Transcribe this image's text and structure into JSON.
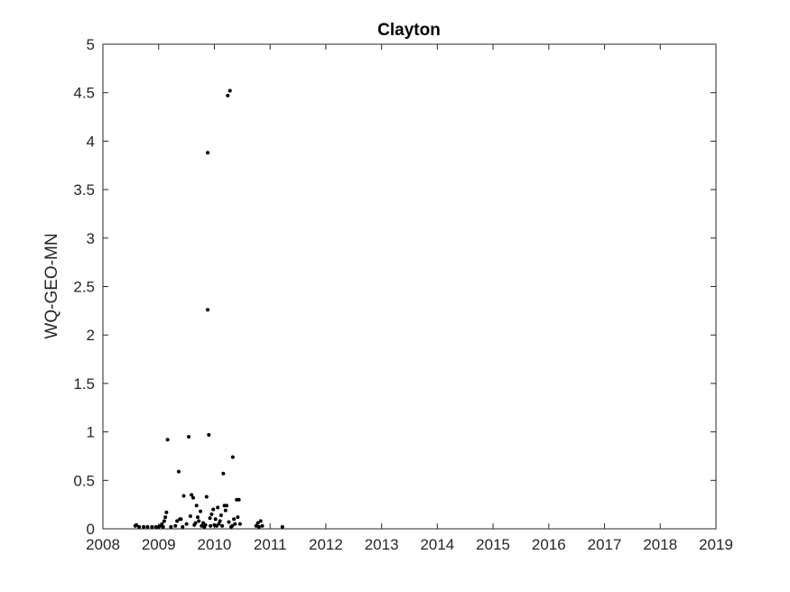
{
  "chart_data": {
    "type": "scatter",
    "title": "Clayton",
    "xlabel": "",
    "ylabel": "WQ-GEO-MN",
    "xlim": [
      2008,
      2019
    ],
    "ylim": [
      0,
      5
    ],
    "xticks": [
      "2008",
      "2009",
      "2010",
      "2011",
      "2012",
      "2013",
      "2014",
      "2015",
      "2016",
      "2017",
      "2018",
      "2019"
    ],
    "yticks": [
      "0",
      "0.5",
      "1",
      "1.5",
      "2",
      "2.5",
      "3",
      "3.5",
      "4",
      "4.5",
      "5"
    ],
    "grid": false,
    "marker_color": "#000000",
    "points": [
      [
        2008.58,
        0.03
      ],
      [
        2008.6,
        0.04
      ],
      [
        2008.65,
        0.02
      ],
      [
        2008.73,
        0.02
      ],
      [
        2008.8,
        0.02
      ],
      [
        2008.88,
        0.02
      ],
      [
        2008.95,
        0.02
      ],
      [
        2009.0,
        0.02
      ],
      [
        2009.03,
        0.03
      ],
      [
        2009.06,
        0.05
      ],
      [
        2009.08,
        0.02
      ],
      [
        2009.1,
        0.08
      ],
      [
        2009.12,
        0.12
      ],
      [
        2009.14,
        0.17
      ],
      [
        2009.16,
        0.92
      ],
      [
        2009.22,
        0.02
      ],
      [
        2009.3,
        0.03
      ],
      [
        2009.33,
        0.08
      ],
      [
        2009.36,
        0.59
      ],
      [
        2009.38,
        0.1
      ],
      [
        2009.4,
        0.1
      ],
      [
        2009.43,
        0.02
      ],
      [
        2009.45,
        0.34
      ],
      [
        2009.5,
        0.05
      ],
      [
        2009.54,
        0.95
      ],
      [
        2009.57,
        0.13
      ],
      [
        2009.59,
        0.35
      ],
      [
        2009.62,
        0.32
      ],
      [
        2009.64,
        0.04
      ],
      [
        2009.66,
        0.06
      ],
      [
        2009.68,
        0.24
      ],
      [
        2009.7,
        0.12
      ],
      [
        2009.72,
        0.08
      ],
      [
        2009.75,
        0.18
      ],
      [
        2009.77,
        0.03
      ],
      [
        2009.8,
        0.06
      ],
      [
        2009.82,
        0.02
      ],
      [
        2009.84,
        0.04
      ],
      [
        2009.86,
        0.33
      ],
      [
        2009.88,
        3.88
      ],
      [
        2009.88,
        2.26
      ],
      [
        2009.9,
        0.97
      ],
      [
        2009.92,
        0.11
      ],
      [
        2009.93,
        0.03
      ],
      [
        2009.95,
        0.15
      ],
      [
        2009.98,
        0.2
      ],
      [
        2010.0,
        0.04
      ],
      [
        2010.02,
        0.1
      ],
      [
        2010.04,
        0.03
      ],
      [
        2010.06,
        0.22
      ],
      [
        2010.08,
        0.05
      ],
      [
        2010.1,
        0.08
      ],
      [
        2010.12,
        0.14
      ],
      [
        2010.14,
        0.03
      ],
      [
        2010.16,
        0.57
      ],
      [
        2010.18,
        0.24
      ],
      [
        2010.2,
        0.19
      ],
      [
        2010.22,
        0.24
      ],
      [
        2010.24,
        4.47
      ],
      [
        2010.26,
        0.07
      ],
      [
        2010.28,
        4.52
      ],
      [
        2010.3,
        0.02
      ],
      [
        2010.32,
        0.03
      ],
      [
        2010.33,
        0.74
      ],
      [
        2010.35,
        0.1
      ],
      [
        2010.37,
        0.05
      ],
      [
        2010.4,
        0.3
      ],
      [
        2010.42,
        0.12
      ],
      [
        2010.44,
        0.3
      ],
      [
        2010.46,
        0.05
      ],
      [
        2010.75,
        0.03
      ],
      [
        2010.78,
        0.06
      ],
      [
        2010.8,
        0.02
      ],
      [
        2010.83,
        0.08
      ],
      [
        2010.86,
        0.03
      ],
      [
        2011.22,
        0.02
      ]
    ]
  }
}
